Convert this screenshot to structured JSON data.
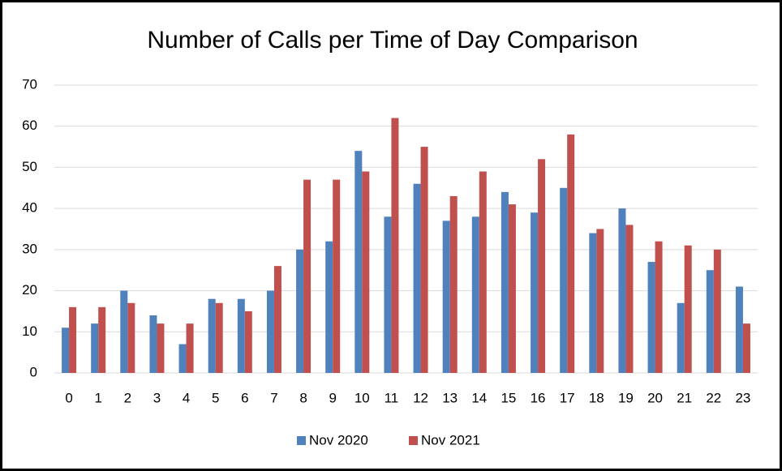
{
  "chart_data": {
    "type": "bar",
    "title": "Number of Calls per Time of Day Comparison",
    "categories": [
      "0",
      "1",
      "2",
      "3",
      "4",
      "5",
      "6",
      "7",
      "8",
      "9",
      "10",
      "11",
      "12",
      "13",
      "14",
      "15",
      "16",
      "17",
      "18",
      "19",
      "20",
      "21",
      "22",
      "23"
    ],
    "series": [
      {
        "name": "Nov 2020",
        "color": "#4f81bd",
        "values": [
          11,
          12,
          20,
          14,
          7,
          18,
          18,
          20,
          30,
          32,
          54,
          38,
          46,
          37,
          38,
          44,
          39,
          45,
          34,
          40,
          27,
          17,
          25,
          21
        ]
      },
      {
        "name": "Nov 2021",
        "color": "#c0504d",
        "values": [
          16,
          16,
          17,
          12,
          12,
          17,
          15,
          26,
          47,
          47,
          49,
          62,
          55,
          43,
          49,
          41,
          52,
          58,
          35,
          36,
          32,
          31,
          30,
          12
        ]
      }
    ],
    "ylim": [
      0,
      70
    ],
    "yticks": [
      0,
      10,
      20,
      30,
      40,
      50,
      60,
      70
    ],
    "grid": true,
    "legend": "bottom"
  }
}
